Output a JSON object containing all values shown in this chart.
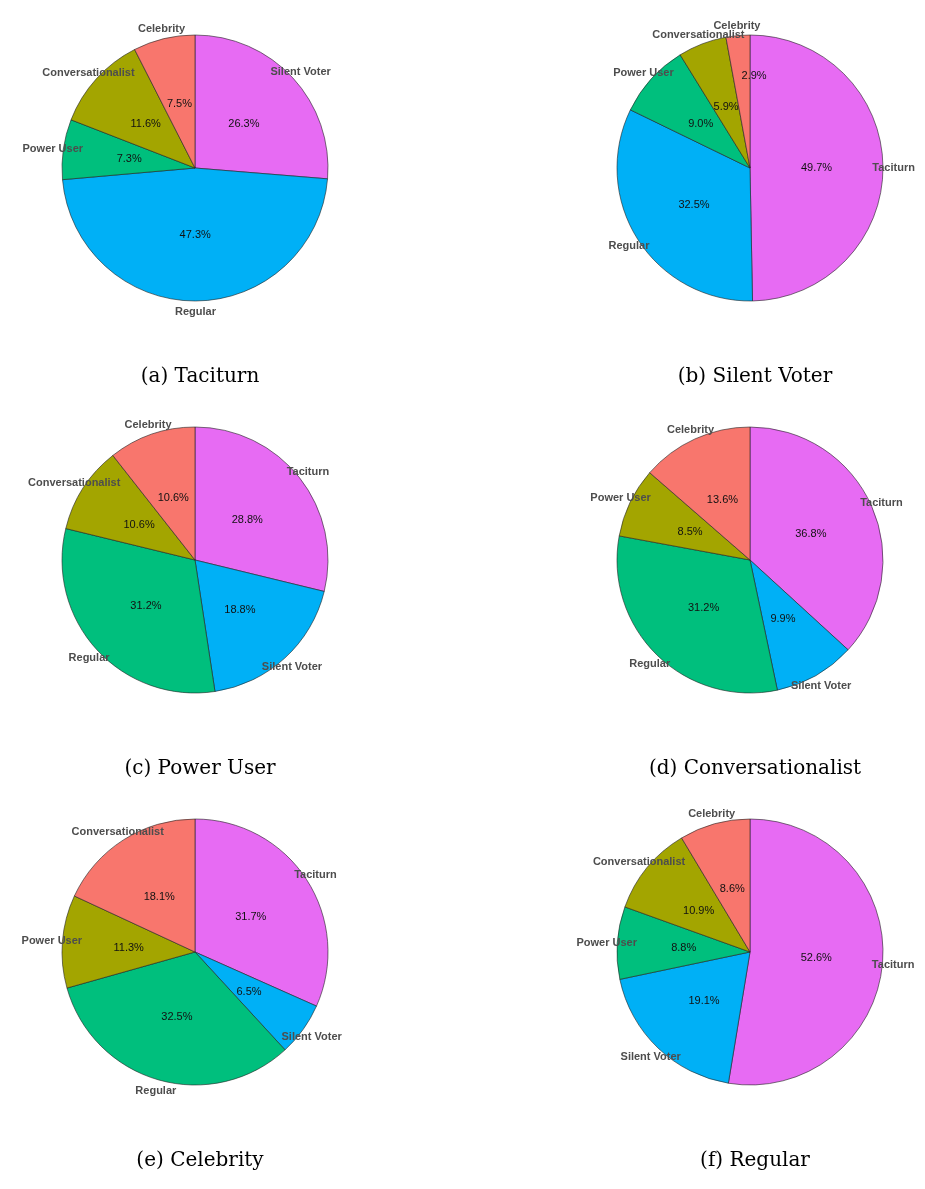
{
  "chart_data": [
    {
      "type": "pie",
      "title": "(a) Taciturn",
      "categories": [
        "Silent Voter",
        "Regular",
        "Power User",
        "Conversationalist",
        "Celebrity"
      ],
      "values": [
        26.3,
        47.3,
        7.3,
        11.6,
        7.5
      ],
      "value_labels": [
        "26.3%",
        "47.3%",
        "7.3%",
        "11.6%",
        "7.5%"
      ],
      "colors": [
        "#e76bf3",
        "#00b0f6",
        "#00bf7d",
        "#a3a500",
        "#f8766d"
      ]
    },
    {
      "type": "pie",
      "title": "(b) Silent Voter",
      "categories": [
        "Taciturn",
        "Regular",
        "Power User",
        "Conversationalist",
        "Celebrity"
      ],
      "values": [
        49.7,
        32.5,
        9.0,
        5.9,
        2.9
      ],
      "value_labels": [
        "49.7%",
        "32.5%",
        "9.0%",
        "5.9%",
        "2.9%"
      ],
      "colors": [
        "#e76bf3",
        "#00b0f6",
        "#00bf7d",
        "#a3a500",
        "#f8766d"
      ]
    },
    {
      "type": "pie",
      "title": "(c) Power User",
      "categories": [
        "Taciturn",
        "Silent Voter",
        "Regular",
        "Conversationalist",
        "Celebrity"
      ],
      "values": [
        28.8,
        18.8,
        31.2,
        10.6,
        10.6
      ],
      "value_labels": [
        "28.8%",
        "18.8%",
        "31.2%",
        "10.6%",
        "10.6%"
      ],
      "colors": [
        "#e76bf3",
        "#00b0f6",
        "#00bf7d",
        "#a3a500",
        "#f8766d"
      ]
    },
    {
      "type": "pie",
      "title": "(d) Conversationalist",
      "categories": [
        "Taciturn",
        "Silent Voter",
        "Regular",
        "Power User",
        "Celebrity"
      ],
      "values": [
        36.8,
        9.9,
        31.2,
        8.5,
        13.6
      ],
      "value_labels": [
        "36.8%",
        "9.9%",
        "31.2%",
        "8.5%",
        "13.6%"
      ],
      "colors": [
        "#e76bf3",
        "#00b0f6",
        "#00bf7d",
        "#a3a500",
        "#f8766d"
      ]
    },
    {
      "type": "pie",
      "title": "(e) Celebrity",
      "categories": [
        "Taciturn",
        "Silent Voter",
        "Regular",
        "Power User",
        "Conversationalist"
      ],
      "values": [
        31.7,
        6.5,
        32.5,
        11.3,
        18.1
      ],
      "value_labels": [
        "31.7%",
        "6.5%",
        "32.5%",
        "11.3%",
        "18.1%"
      ],
      "colors": [
        "#e76bf3",
        "#00b0f6",
        "#00bf7d",
        "#a3a500",
        "#f8766d"
      ]
    },
    {
      "type": "pie",
      "title": "(f) Regular",
      "categories": [
        "Taciturn",
        "Silent Voter",
        "Power User",
        "Conversationalist",
        "Celebrity"
      ],
      "values": [
        52.6,
        19.1,
        8.8,
        10.9,
        8.6
      ],
      "value_labels": [
        "52.6%",
        "19.1%",
        "8.8%",
        "10.9%",
        "8.6%"
      ],
      "colors": [
        "#e76bf3",
        "#00b0f6",
        "#00bf7d",
        "#a3a500",
        "#f8766d"
      ]
    }
  ]
}
